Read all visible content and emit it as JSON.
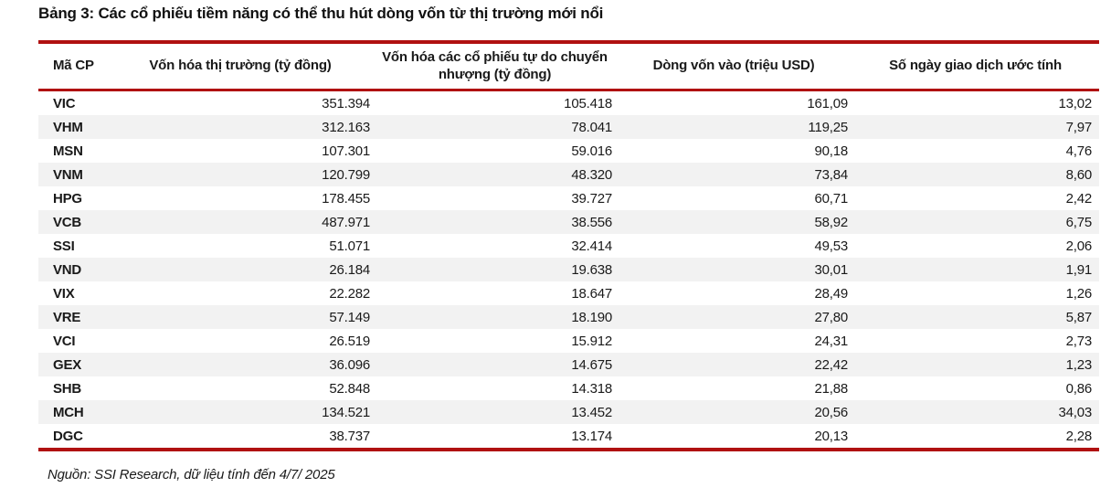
{
  "title": "Bảng 3: Các cổ phiếu tiềm năng có thể thu hút dòng vốn từ thị trường mới nổi",
  "table": {
    "columns": [
      "Mã CP",
      "Vốn hóa thị trường (tỷ đồng)",
      "Vốn hóa các cổ phiếu tự do chuyển nhượng (tỷ đồng)",
      "Dòng vốn vào (triệu USD)",
      "Số ngày giao dịch ước tính"
    ],
    "rows": [
      [
        "VIC",
        "351.394",
        "105.418",
        "161,09",
        "13,02"
      ],
      [
        "VHM",
        "312.163",
        "78.041",
        "119,25",
        "7,97"
      ],
      [
        "MSN",
        "107.301",
        "59.016",
        "90,18",
        "4,76"
      ],
      [
        "VNM",
        "120.799",
        "48.320",
        "73,84",
        "8,60"
      ],
      [
        "HPG",
        "178.455",
        "39.727",
        "60,71",
        "2,42"
      ],
      [
        "VCB",
        "487.971",
        "38.556",
        "58,92",
        "6,75"
      ],
      [
        "SSI",
        "51.071",
        "32.414",
        "49,53",
        "2,06"
      ],
      [
        "VND",
        "26.184",
        "19.638",
        "30,01",
        "1,91"
      ],
      [
        "VIX",
        "22.282",
        "18.647",
        "28,49",
        "1,26"
      ],
      [
        "VRE",
        "57.149",
        "18.190",
        "27,80",
        "5,87"
      ],
      [
        "VCI",
        "26.519",
        "15.912",
        "24,31",
        "2,73"
      ],
      [
        "GEX",
        "36.096",
        "14.675",
        "22,42",
        "1,23"
      ],
      [
        "SHB",
        "52.848",
        "14.318",
        "21,88",
        "0,86"
      ],
      [
        "MCH",
        "134.521",
        "13.452",
        "20,56",
        "34,03"
      ],
      [
        "DGC",
        "38.737",
        "13.174",
        "20,13",
        "2,28"
      ]
    ]
  },
  "source": "Nguồn: SSI Research, dữ liệu tính đến 4/7/ 2025",
  "colors": {
    "accent_red": "#B01111",
    "alt_row_gray": "#F2F2F2",
    "text": "#1A1A1A"
  }
}
